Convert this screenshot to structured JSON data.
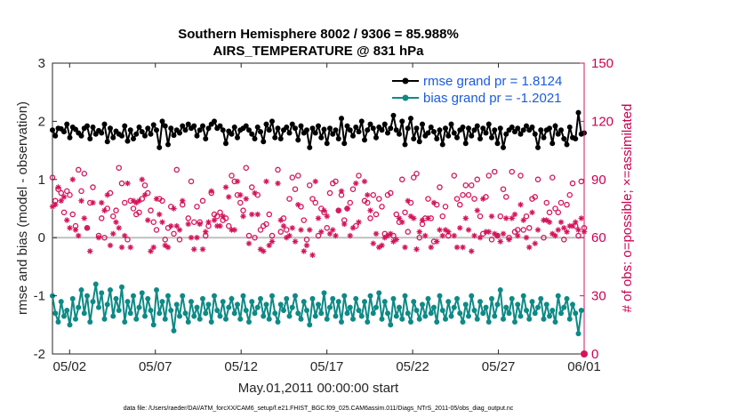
{
  "chart_data": {
    "type": "line",
    "title_line1": "Southern Hemisphere 8002 / 9306 = 85.988%",
    "title_line2": "AIRS_TEMPERATURE @ 831 hPa",
    "xlabel": "May.01,2011 00:00:00 start",
    "ylabel_left": "rmse and bias (model - observation)",
    "ylabel_right": "# of obs: o=possible; ×=assimilated",
    "footnote": "data file: /Users/raeder/DAI/ATM_forcXX/CAM6_setup/f.e21.FHIST_BGC.f09_025.CAM6assim.011/Diags_NTrS_2011-05/obs_diag_output.nc",
    "x_ticks": [
      "05/02",
      "05/07",
      "05/12",
      "05/17",
      "05/22",
      "05/27",
      "06/01"
    ],
    "x_tick_days": [
      2,
      7,
      12,
      17,
      22,
      27,
      32
    ],
    "xlim_days": [
      1,
      32
    ],
    "ylim_left": [
      -2,
      3
    ],
    "y_ticks_left": [
      "-2",
      "-1",
      "0",
      "1",
      "2",
      "3"
    ],
    "ylim_right": [
      0,
      150
    ],
    "y_ticks_right": [
      "0",
      "30",
      "60",
      "90",
      "120",
      "150"
    ],
    "zero_line": 0,
    "legend_location": "top-right",
    "colors": {
      "rmse": "#000000",
      "bias": "#0e8a86",
      "obs": "#d4145a",
      "zero": "#bfbfbf"
    },
    "series": [
      {
        "name": "rmse grand pr = 1.8124",
        "key": "rmse",
        "values": [
          1.85,
          1.75,
          1.88,
          1.87,
          1.82,
          1.95,
          1.72,
          1.9,
          1.86,
          1.8,
          1.75,
          1.88,
          1.92,
          1.7,
          1.9,
          1.78,
          1.84,
          1.8,
          1.95,
          1.65,
          1.88,
          1.72,
          1.83,
          1.78,
          1.75,
          1.92,
          1.66,
          1.85,
          1.7,
          1.78,
          1.9,
          1.82,
          1.75,
          1.88,
          1.78,
          1.94,
          1.85,
          1.55,
          2.0,
          1.92,
          1.6,
          1.88,
          1.76,
          1.85,
          1.8,
          1.92,
          1.85,
          1.95,
          1.88,
          1.92,
          1.75,
          1.85,
          1.92,
          1.7,
          1.88,
          1.95,
          2.0,
          1.88,
          1.92,
          1.85,
          1.62,
          1.83,
          1.78,
          1.9,
          1.72,
          1.85,
          1.88,
          1.92,
          1.85,
          1.78,
          1.7,
          1.9,
          1.82,
          1.65,
          1.95,
          1.85,
          2.0,
          1.72,
          1.88,
          1.7,
          1.85,
          1.9,
          1.8,
          1.95,
          1.88,
          1.68,
          1.92,
          1.8,
          1.85,
          1.55,
          1.88,
          1.8,
          1.92,
          1.72,
          1.86,
          1.62,
          1.88,
          1.78,
          1.85,
          1.7,
          2.05,
          1.62,
          1.92,
          1.85,
          1.75,
          1.9,
          1.82,
          2.0,
          1.68,
          1.85,
          1.95,
          1.88,
          1.72,
          1.9,
          1.85,
          1.95,
          1.8,
          1.88,
          2.1,
          1.85,
          1.78,
          2.0,
          1.6,
          1.88,
          2.05,
          1.7,
          1.88,
          1.65,
          1.95,
          1.75,
          1.8,
          1.9,
          1.82,
          1.7,
          1.85,
          1.6,
          1.88,
          1.75,
          1.95,
          1.8,
          1.72,
          1.85,
          1.9,
          1.62,
          1.88,
          1.75,
          1.85,
          1.92,
          1.7,
          1.88,
          1.8,
          1.95,
          1.72,
          1.85,
          1.62,
          1.88,
          1.55,
          1.78,
          1.85,
          1.9,
          1.82,
          1.88,
          1.78,
          1.85,
          1.92,
          1.85,
          1.9,
          1.78,
          1.55,
          1.85,
          1.72,
          1.85,
          1.88,
          1.62,
          1.92,
          1.78,
          1.85,
          1.7,
          1.6,
          1.9,
          1.72,
          1.7,
          2.15,
          1.78,
          1.8
        ]
      },
      {
        "name": "bias grand pr = -1.2021",
        "key": "bias",
        "values": [
          -1.0,
          -1.3,
          -1.45,
          -1.1,
          -1.35,
          -1.25,
          -1.5,
          -1.05,
          -1.4,
          -1.2,
          -0.9,
          -1.3,
          -1.0,
          -1.45,
          -1.1,
          -0.8,
          -1.2,
          -0.95,
          -1.4,
          -1.15,
          -0.9,
          -1.35,
          -1.05,
          -1.25,
          -0.85,
          -1.45,
          -1.1,
          -1.3,
          -1.0,
          -1.4,
          -1.2,
          -0.95,
          -1.35,
          -1.05,
          -1.25,
          -1.5,
          -0.9,
          -1.3,
          -1.1,
          -1.4,
          -1.0,
          -1.25,
          -1.6,
          -1.15,
          -1.35,
          -1.0,
          -1.3,
          -1.45,
          -1.1,
          -1.35,
          -1.2,
          -1.4,
          -1.05,
          -1.3,
          -1.15,
          -1.45,
          -1.0,
          -1.25,
          -1.35,
          -1.1,
          -1.4,
          -1.2,
          -1.05,
          -1.3,
          -1.15,
          -1.4,
          -1.0,
          -1.25,
          -1.45,
          -1.1,
          -1.3,
          -1.2,
          -1.05,
          -1.35,
          -1.15,
          -1.4,
          -1.0,
          -1.3,
          -1.45,
          -1.15,
          -1.25,
          -1.05,
          -1.35,
          -1.2,
          -1.0,
          -1.3,
          -1.4,
          -1.1,
          -1.25,
          -1.5,
          -1.05,
          -1.35,
          -1.15,
          -1.3,
          -0.95,
          -1.4,
          -1.2,
          -1.05,
          -1.35,
          -1.1,
          -1.45,
          -1.0,
          -1.3,
          -1.2,
          -1.4,
          -1.05,
          -1.25,
          -1.35,
          -1.1,
          -1.45,
          -1.0,
          -1.3,
          -1.2,
          -0.95,
          -1.4,
          -1.1,
          -1.3,
          -1.5,
          -1.05,
          -1.35,
          -1.2,
          -1.4,
          -1.0,
          -1.3,
          -1.45,
          -1.1,
          -1.25,
          -1.4,
          -1.15,
          -1.35,
          -1.05,
          -1.3,
          -1.2,
          -1.45,
          -1.0,
          -1.25,
          -1.4,
          -1.1,
          -1.35,
          -1.2,
          -1.05,
          -1.3,
          -1.45,
          -1.15,
          -1.35,
          -1.0,
          -1.25,
          -1.4,
          -1.1,
          -1.3,
          -1.2,
          -1.45,
          -1.05,
          -1.35,
          -1.15,
          -0.9,
          -1.4,
          -1.2,
          -1.3,
          -1.05,
          -1.45,
          -1.15,
          -1.35,
          -1.0,
          -1.25,
          -1.4,
          -1.1,
          -1.3,
          -1.2,
          -1.05,
          -1.4,
          -1.15,
          -1.35,
          -1.25,
          -1.45,
          -1.0,
          -1.3,
          -1.2,
          -1.05,
          -1.4,
          -1.15,
          -1.3,
          -1.65,
          -1.25
        ]
      }
    ],
    "obs_possible_count": [
      91,
      79,
      85,
      83,
      73,
      84,
      82,
      72,
      66,
      95,
      84,
      93,
      65,
      78,
      86,
      61,
      70,
      60,
      75,
      83,
      71,
      74,
      96,
      88,
      78,
      59,
      79,
      75,
      72,
      73,
      80,
      87,
      83,
      74,
      68,
      64,
      80,
      79,
      59,
      65,
      76,
      62,
      95,
      59,
      77,
      70,
      89,
      68,
      76,
      68,
      79,
      61,
      66,
      83,
      72,
      71,
      73,
      69,
      70,
      66,
      92,
      89,
      82,
      78,
      74,
      96,
      61,
      86,
      60,
      82,
      64,
      66,
      67,
      72,
      61,
      95,
      63,
      70,
      64,
      80,
      91,
      85,
      92,
      76,
      69,
      59,
      87,
      80,
      78,
      61,
      75,
      73,
      65,
      83,
      88,
      89,
      74,
      82,
      69,
      75,
      78,
      85,
      66,
      92,
      79,
      78,
      70,
      82,
      72,
      80,
      76,
      62,
      82,
      83,
      61,
      72,
      68,
      90,
      73,
      63,
      78,
      91,
      93,
      60,
      67,
      70,
      80,
      70,
      58,
      77,
      86,
      71,
      76,
      61,
      92,
      80,
      77,
      82,
      87,
      82,
      87,
      80,
      90,
      71,
      62,
      81,
      92,
      59,
      94,
      61,
      71,
      85,
      81,
      60,
      94,
      63,
      64,
      92,
      64,
      71,
      65,
      80,
      81,
      90,
      60,
      78,
      73,
      91,
      75,
      73,
      78,
      59,
      77,
      82,
      88,
      66,
      61,
      89,
      65
    ],
    "obs_assimilated_count": [
      76,
      77,
      86,
      79,
      81,
      69,
      65,
      90,
      64,
      61,
      79,
      70,
      65,
      53,
      78,
      60,
      78,
      74,
      82,
      56,
      62,
      68,
      65,
      55,
      61,
      88,
      55,
      79,
      78,
      79,
      90,
      82,
      69,
      53,
      55,
      80,
      72,
      68,
      56,
      55,
      66,
      75,
      66,
      64,
      79,
      67,
      60,
      54,
      60,
      67,
      54,
      63,
      68,
      84,
      69,
      66,
      66,
      71,
      86,
      81,
      64,
      64,
      89,
      82,
      71,
      80,
      57,
      72,
      83,
      72,
      54,
      53,
      89,
      56,
      58,
      88,
      69,
      66,
      60,
      61,
      65,
      58,
      77,
      64,
      53,
      56,
      64,
      51,
      89,
      70,
      63,
      74,
      71,
      62,
      64,
      61,
      74,
      84,
      67,
      75,
      61,
      65,
      88,
      68,
      89,
      82,
      74,
      57,
      62,
      55,
      56,
      60,
      61,
      62,
      58,
      59,
      70,
      68,
      55,
      79,
      71,
      70,
      54,
      63,
      69,
      61,
      70,
      55,
      78,
      58,
      64,
      61,
      64,
      63,
      61,
      55,
      65,
      55,
      70,
      64,
      53,
      61,
      74,
      60,
      80,
      63,
      63,
      71,
      62,
      61,
      58,
      62,
      70,
      59,
      70,
      72,
      61,
      77,
      69,
      60,
      55,
      73,
      57,
      64,
      69,
      69,
      68,
      62,
      61,
      64,
      68,
      65,
      63,
      66,
      66,
      68,
      64,
      70,
      63
    ]
  }
}
